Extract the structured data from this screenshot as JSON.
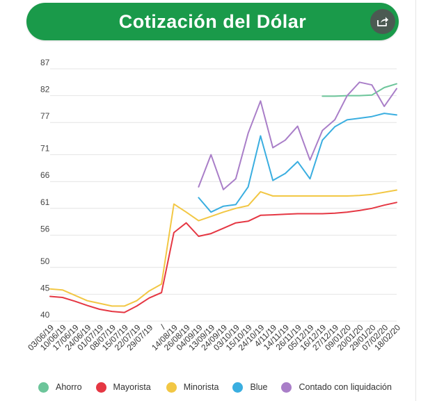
{
  "header": {
    "title": "Cotización del Dólar"
  },
  "chart_data": {
    "type": "line",
    "title": "Cotización del Dólar",
    "ylim": [
      40,
      87
    ],
    "yticks": [
      87,
      82,
      77,
      71,
      66,
      61,
      56,
      50,
      45,
      40
    ],
    "x": [
      "03/06/19",
      "10/06/19",
      "17/06/19",
      "24/06/19",
      "01/07/19",
      "08/07/19",
      "15/07/19",
      "22/07/19",
      "29/07/19",
      "/",
      "14/08/19",
      "26/08/19",
      "04/09/19",
      "13/09/19",
      "24/09/19",
      "03/10/19",
      "15/10/19",
      "24/10/19",
      "4/11/19",
      "14/11/19",
      "26/11/19",
      "05/12/19",
      "16/12/19",
      "27/12/19",
      "09/01/20",
      "20/01/20",
      "29/01/20",
      "07/02/20",
      "18/02/20"
    ],
    "series": [
      {
        "name": "Ahorro",
        "color": "#6cc59a",
        "values": [
          null,
          null,
          null,
          null,
          null,
          null,
          null,
          null,
          null,
          null,
          null,
          null,
          null,
          null,
          null,
          null,
          null,
          null,
          null,
          null,
          null,
          null,
          81.9,
          81.9,
          82.0,
          82.0,
          82.1,
          83.5,
          84.2
        ]
      },
      {
        "name": "Mayorista",
        "color": "#e53743",
        "values": [
          44.6,
          44.4,
          43.7,
          42.9,
          42.2,
          41.8,
          41.6,
          42.8,
          44.3,
          45.3,
          56.5,
          58.3,
          55.8,
          56.3,
          57.3,
          58.3,
          58.6,
          59.7,
          59.8,
          59.9,
          60.0,
          60.0,
          60.0,
          60.1,
          60.3,
          60.6,
          61.0,
          61.6,
          62.1
        ]
      },
      {
        "name": "Minorista",
        "color": "#f2c744",
        "values": [
          46.0,
          45.8,
          44.8,
          43.8,
          43.3,
          42.8,
          42.8,
          43.8,
          45.6,
          46.9,
          61.8,
          60.3,
          58.7,
          59.5,
          60.3,
          61.0,
          61.5,
          64.1,
          63.3,
          63.3,
          63.3,
          63.3,
          63.3,
          63.3,
          63.3,
          63.4,
          63.6,
          64.0,
          64.4
        ]
      },
      {
        "name": "Blue",
        "color": "#3aaee0",
        "values": [
          null,
          null,
          null,
          null,
          null,
          null,
          null,
          null,
          null,
          null,
          null,
          null,
          63.0,
          60.3,
          61.4,
          61.7,
          65.0,
          74.5,
          66.2,
          67.5,
          69.7,
          66.5,
          73.7,
          76.2,
          77.5,
          77.8,
          78.1,
          78.7,
          78.4
        ]
      },
      {
        "name": "Contado con liquidación",
        "color": "#a97ec8",
        "values": [
          null,
          null,
          null,
          null,
          null,
          null,
          null,
          null,
          null,
          null,
          null,
          null,
          65.0,
          71.0,
          64.5,
          66.5,
          75.0,
          81.0,
          72.3,
          73.7,
          76.3,
          70.0,
          75.5,
          77.5,
          82.0,
          84.5,
          84.0,
          80.0,
          83.3
        ]
      }
    ]
  },
  "icons": {
    "share": "share-icon"
  }
}
